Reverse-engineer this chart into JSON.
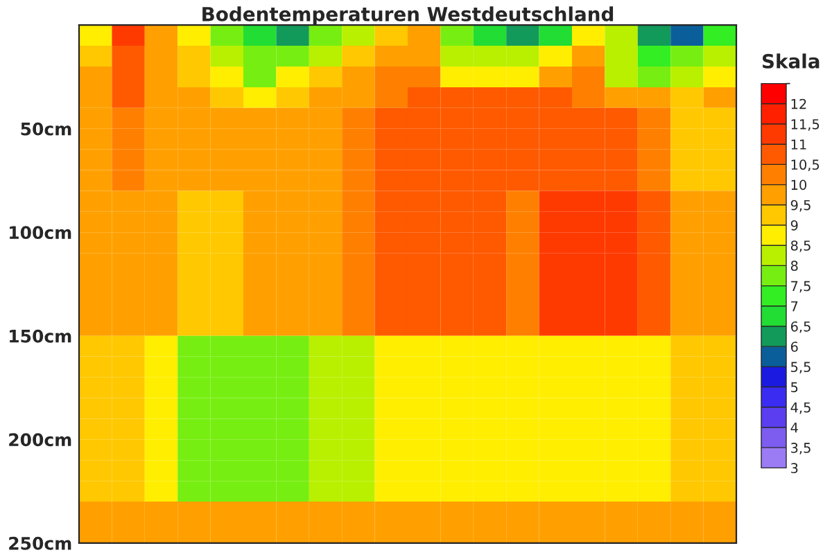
{
  "chart_data": {
    "type": "heatmap",
    "title": "Bodentemperaturen Westdeutschland",
    "clabel": "Skala",
    "categories": [
      null,
      null,
      null,
      null,
      null,
      null,
      null,
      null,
      null,
      null,
      null,
      null,
      null,
      null,
      null,
      null,
      null,
      null,
      null,
      null
    ],
    "ylim": [
      250,
      0
    ],
    "yticks": [
      {
        "value": 50,
        "label": "50cm"
      },
      {
        "value": 100,
        "label": "100cm"
      },
      {
        "value": 150,
        "label": "150cm"
      },
      {
        "value": 200,
        "label": "200cm"
      },
      {
        "value": 250,
        "label": "250cm"
      }
    ],
    "tick_labels": "y",
    "clim": [
      3,
      12.5
    ],
    "cticks": [
      3,
      {
        "value": 3.5,
        "label": "3,5"
      },
      4,
      {
        "value": 4.5,
        "label": "4,5"
      },
      5,
      {
        "value": 5.5,
        "label": "5,5"
      },
      6,
      {
        "value": 6.5,
        "label": "6,5"
      },
      7,
      {
        "value": 7.5,
        "label": "7,5"
      },
      8,
      {
        "value": 8.5,
        "label": "8,5"
      },
      9,
      {
        "value": 9.5,
        "label": "9,5"
      },
      10,
      {
        "value": 10.5,
        "label": "10,5"
      },
      11,
      {
        "value": 11.5,
        "label": "11,5"
      },
      12
    ],
    "colors": [
      "#9b7cf5",
      "#7d5cf0",
      "#5a3ef0",
      "#3a2cf0",
      "#1a1ae0",
      "#0a5f9a",
      "#119a5a",
      "#22dd33",
      "#33ee22",
      "#77ee11",
      "#b8f000",
      "#ffee00",
      "#ffc800",
      "#ffa000",
      "#ff8000",
      "#ff5a00",
      "#ff3a00",
      "#ff2000",
      "#ff0000"
    ],
    "cells": [
      [
        8.75,
        11.25,
        9.75,
        8.75,
        7.75,
        6.75,
        6.25,
        7.75,
        8.25,
        9.25,
        9.75,
        7.75,
        6.75,
        6.25,
        6.75,
        8.75,
        8.25,
        6.25,
        5.75,
        7.25
      ],
      [
        9.25,
        10.75,
        9.75,
        9.25,
        8.25,
        7.75,
        7.75,
        8.25,
        9.25,
        9.75,
        9.75,
        8.25,
        8.25,
        8.25,
        8.75,
        9.75,
        8.25,
        7.25,
        7.75,
        8.25
      ],
      [
        9.75,
        10.75,
        9.75,
        9.25,
        8.75,
        7.75,
        8.75,
        9.25,
        9.75,
        10.25,
        10.25,
        8.75,
        8.75,
        8.75,
        9.75,
        10.25,
        8.25,
        7.75,
        8.25,
        8.75
      ],
      [
        9.75,
        10.75,
        9.75,
        9.75,
        9.25,
        8.75,
        9.25,
        9.75,
        9.75,
        10.25,
        10.75,
        10.75,
        10.75,
        10.75,
        10.75,
        10.25,
        9.75,
        9.75,
        9.25,
        9.75
      ],
      [
        9.75,
        10.25,
        9.75,
        9.75,
        9.75,
        9.75,
        9.75,
        9.75,
        10.25,
        10.75,
        10.75,
        10.75,
        10.75,
        10.75,
        10.75,
        10.75,
        10.75,
        10.25,
        9.25,
        9.25
      ],
      [
        9.75,
        10.25,
        9.75,
        9.75,
        9.75,
        9.75,
        9.75,
        9.75,
        10.25,
        10.75,
        10.75,
        10.75,
        10.75,
        10.75,
        10.75,
        10.75,
        10.75,
        10.25,
        9.25,
        9.25
      ],
      [
        9.75,
        10.25,
        9.75,
        9.75,
        9.75,
        9.75,
        9.75,
        9.75,
        10.25,
        10.75,
        10.75,
        10.75,
        10.75,
        10.75,
        10.75,
        10.75,
        10.75,
        10.25,
        9.25,
        9.25
      ],
      [
        9.75,
        10.25,
        9.75,
        9.75,
        9.75,
        9.75,
        9.75,
        9.75,
        10.25,
        10.75,
        10.75,
        10.75,
        10.75,
        10.75,
        10.75,
        10.75,
        10.75,
        10.25,
        9.25,
        9.25
      ],
      [
        9.75,
        9.75,
        9.75,
        9.25,
        9.25,
        9.75,
        9.75,
        9.75,
        10.25,
        10.75,
        10.75,
        10.75,
        10.75,
        10.25,
        11.25,
        11.25,
        11.25,
        10.75,
        9.75,
        9.75
      ],
      [
        9.75,
        9.75,
        9.75,
        9.25,
        9.25,
        9.75,
        9.75,
        9.75,
        10.25,
        10.75,
        10.75,
        10.75,
        10.75,
        10.25,
        11.25,
        11.25,
        11.25,
        10.75,
        9.75,
        9.75
      ],
      [
        9.75,
        9.75,
        9.75,
        9.25,
        9.25,
        9.75,
        9.75,
        9.75,
        10.25,
        10.75,
        10.75,
        10.75,
        10.75,
        10.25,
        11.25,
        11.25,
        11.25,
        10.75,
        9.75,
        9.75
      ],
      [
        9.75,
        9.75,
        9.75,
        9.25,
        9.25,
        9.75,
        9.75,
        9.75,
        10.25,
        10.75,
        10.75,
        10.75,
        10.75,
        10.25,
        11.25,
        11.25,
        11.25,
        10.75,
        9.75,
        9.75
      ],
      [
        9.75,
        9.75,
        9.75,
        9.25,
        9.25,
        9.75,
        9.75,
        9.75,
        10.25,
        10.75,
        10.75,
        10.75,
        10.75,
        10.25,
        11.25,
        11.25,
        11.25,
        10.75,
        9.75,
        9.75
      ],
      [
        9.75,
        9.75,
        9.75,
        9.25,
        9.25,
        9.75,
        9.75,
        9.75,
        10.25,
        10.75,
        10.75,
        10.75,
        10.75,
        10.25,
        11.25,
        11.25,
        11.25,
        10.75,
        9.75,
        9.75
      ],
      [
        9.75,
        9.75,
        9.75,
        9.25,
        9.25,
        9.75,
        9.75,
        9.75,
        10.25,
        10.75,
        10.75,
        10.75,
        10.75,
        10.25,
        11.25,
        11.25,
        11.25,
        10.75,
        9.75,
        9.75
      ],
      [
        9.25,
        9.25,
        8.75,
        7.75,
        7.75,
        7.75,
        7.75,
        8.25,
        8.25,
        8.75,
        8.75,
        8.75,
        8.75,
        8.75,
        8.75,
        8.75,
        8.75,
        8.75,
        9.25,
        9.25
      ],
      [
        9.25,
        9.25,
        8.75,
        7.75,
        7.75,
        7.75,
        7.75,
        8.25,
        8.25,
        8.75,
        8.75,
        8.75,
        8.75,
        8.75,
        8.75,
        8.75,
        8.75,
        8.75,
        9.25,
        9.25
      ],
      [
        9.25,
        9.25,
        8.75,
        7.75,
        7.75,
        7.75,
        7.75,
        8.25,
        8.25,
        8.75,
        8.75,
        8.75,
        8.75,
        8.75,
        8.75,
        8.75,
        8.75,
        8.75,
        9.25,
        9.25
      ],
      [
        9.25,
        9.25,
        8.75,
        7.75,
        7.75,
        7.75,
        7.75,
        8.25,
        8.25,
        8.75,
        8.75,
        8.75,
        8.75,
        8.75,
        8.75,
        8.75,
        8.75,
        8.75,
        9.25,
        9.25
      ],
      [
        9.25,
        9.25,
        8.75,
        7.75,
        7.75,
        7.75,
        7.75,
        8.25,
        8.25,
        8.75,
        8.75,
        8.75,
        8.75,
        8.75,
        8.75,
        8.75,
        8.75,
        8.75,
        9.25,
        9.25
      ],
      [
        9.25,
        9.25,
        8.75,
        7.75,
        7.75,
        7.75,
        7.75,
        8.25,
        8.25,
        8.75,
        8.75,
        8.75,
        8.75,
        8.75,
        8.75,
        8.75,
        8.75,
        8.75,
        9.25,
        9.25
      ],
      [
        9.25,
        9.25,
        8.75,
        7.75,
        7.75,
        7.75,
        7.75,
        8.25,
        8.25,
        8.75,
        8.75,
        8.75,
        8.75,
        8.75,
        8.75,
        8.75,
        8.75,
        8.75,
        9.25,
        9.25
      ],
      [
        9.25,
        9.25,
        8.75,
        7.75,
        7.75,
        7.75,
        7.75,
        8.25,
        8.25,
        8.75,
        8.75,
        8.75,
        8.75,
        8.75,
        8.75,
        8.75,
        8.75,
        8.75,
        9.25,
        9.25
      ],
      [
        9.75,
        9.75,
        9.75,
        9.75,
        9.75,
        9.75,
        9.75,
        9.75,
        9.75,
        9.75,
        9.75,
        9.75,
        9.75,
        9.75,
        9.75,
        9.75,
        9.75,
        9.75,
        9.75,
        9.75
      ],
      [
        9.75,
        9.75,
        9.75,
        9.75,
        9.75,
        9.75,
        9.75,
        9.75,
        9.75,
        9.75,
        9.75,
        9.75,
        9.75,
        9.75,
        9.75,
        9.75,
        9.75,
        9.75,
        9.75,
        9.75
      ]
    ]
  }
}
